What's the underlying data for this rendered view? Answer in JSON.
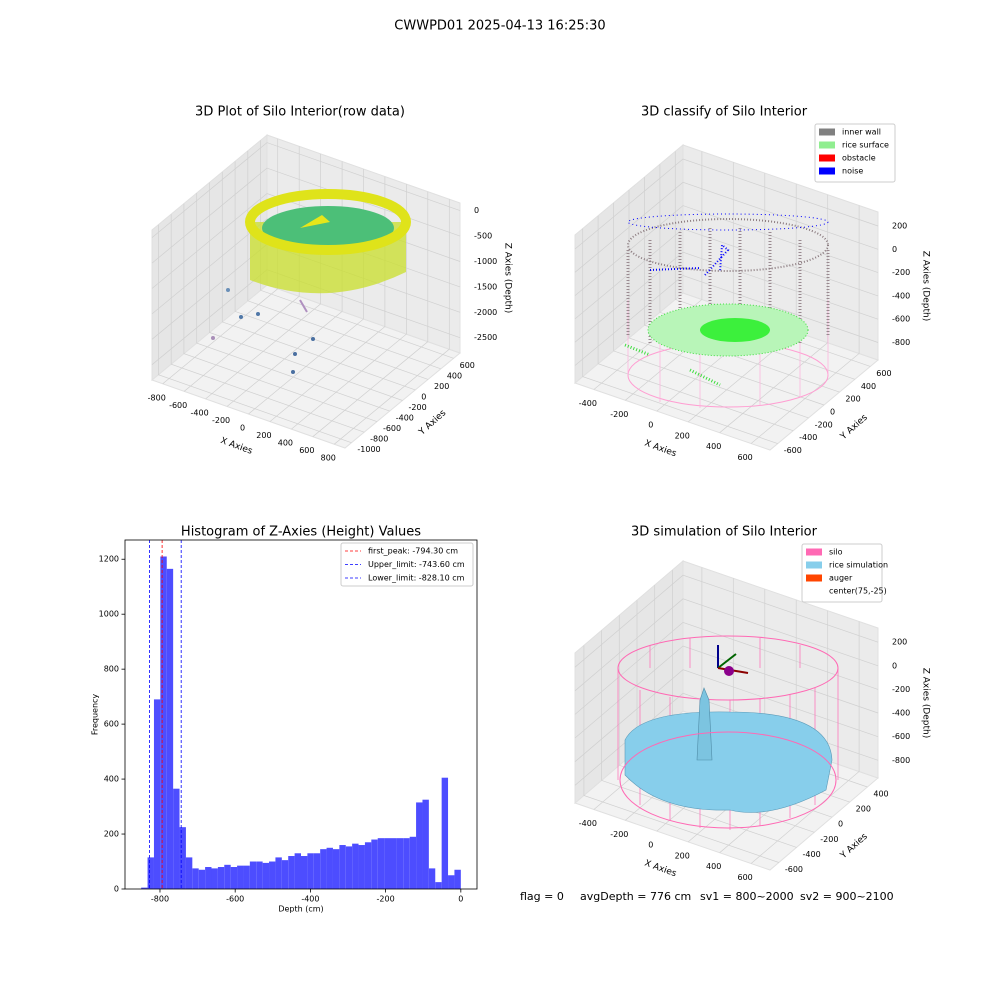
{
  "title": "CWWPD01 2025-04-13 16:25:30",
  "chart_data": [
    {
      "type": "scatter3d",
      "title": "3D Plot of Silo Interior(row data)",
      "xlabel": "X Axies",
      "ylabel": "Y Axies",
      "zlabel": "Z Axies (Depth)",
      "xlim": [
        -900,
        900
      ],
      "ylim": [
        -1100,
        700
      ],
      "zlim": [
        -2800,
        150
      ],
      "xticks": [
        -800,
        -600,
        -400,
        -200,
        0,
        200,
        400,
        600,
        800
      ],
      "yticks": [
        -1000,
        -800,
        -600,
        -400,
        -200,
        0,
        200,
        400,
        600
      ],
      "zticks": [
        -2500,
        -2000,
        -1500,
        -1000,
        -500,
        0
      ]
    },
    {
      "type": "scatter3d",
      "title": "3D classify of Silo Interior",
      "xlabel": "X Axies",
      "ylabel": "Y Axies",
      "zlabel": "Z Axies (Depth)",
      "xlim": [
        -520,
        720
      ],
      "ylim": [
        -700,
        700
      ],
      "zlim": [
        -950,
        320
      ],
      "xticks": [
        -400,
        -200,
        0,
        200,
        400,
        600
      ],
      "yticks": [
        -600,
        -400,
        -200,
        0,
        200,
        400,
        600
      ],
      "zticks": [
        -800,
        -600,
        -400,
        -200,
        0,
        200
      ],
      "series": [
        {
          "name": "inner wall",
          "color": "#808080"
        },
        {
          "name": "rice surface",
          "color": "#90ee90"
        },
        {
          "name": "obstacle",
          "color": "#ff0000"
        },
        {
          "name": "noise",
          "color": "#0000ff"
        }
      ]
    },
    {
      "type": "histogram",
      "title": "Histogram of Z-Axies (Height) Values",
      "xlabel": "Depth (cm)",
      "ylabel": "Frequency",
      "color": "#4d4dff",
      "xlim": [
        -893,
        43
      ],
      "ylim": [
        0,
        1270
      ],
      "xticks": [
        -800,
        -600,
        -400,
        -200,
        0
      ],
      "yticks": [
        0,
        200,
        400,
        600,
        800,
        1000,
        1200
      ],
      "bins": [
        -850,
        -833,
        -816,
        -799,
        -782,
        -765,
        -748,
        -731,
        -714,
        -697,
        -680,
        -663,
        -646,
        -629,
        -612,
        -595,
        -578,
        -561,
        -544,
        -527,
        -510,
        -493,
        -476,
        -459,
        -442,
        -425,
        -408,
        -391,
        -374,
        -357,
        -340,
        -323,
        -306,
        -289,
        -272,
        -255,
        -238,
        -221,
        -204,
        -187,
        -170,
        -153,
        -136,
        -119,
        -102,
        -85,
        -68,
        -51,
        -34,
        -17,
        0
      ],
      "counts": [
        5,
        115,
        690,
        1210,
        1165,
        365,
        225,
        115,
        75,
        70,
        80,
        75,
        80,
        88,
        80,
        85,
        85,
        100,
        100,
        95,
        100,
        115,
        105,
        120,
        130,
        120,
        130,
        130,
        145,
        150,
        145,
        160,
        155,
        165,
        160,
        170,
        180,
        185,
        185,
        185,
        185,
        185,
        190,
        315,
        325,
        75,
        25,
        405,
        50,
        70
      ],
      "lines": [
        {
          "name": "first_peak: -794.30 cm",
          "value": -794.3,
          "color": "#ff0000"
        },
        {
          "name": "Upper_limit: -743.60 cm",
          "value": -743.6,
          "color": "#0000ff"
        },
        {
          "name": "Lower_limit: -828.10 cm",
          "value": -828.1,
          "color": "#0000ff"
        }
      ]
    },
    {
      "type": "surface3d",
      "title": "3D simulation of Silo Interior",
      "xlabel": "X Axies",
      "ylabel": "Y Axies",
      "zlabel": "Z Axies (Depth)",
      "xlim": [
        -520,
        720
      ],
      "ylim": [
        -700,
        520
      ],
      "zlim": [
        -950,
        320
      ],
      "xticks": [
        -400,
        -200,
        0,
        200,
        400,
        600
      ],
      "yticks": [
        -600,
        -400,
        -200,
        0,
        200,
        400
      ],
      "zticks": [
        -800,
        -600,
        -400,
        -200,
        0,
        200
      ],
      "series": [
        {
          "name": "silo",
          "color": "#ff69b4"
        },
        {
          "name": "rice simulation",
          "color": "#87ceeb"
        },
        {
          "name": "auger",
          "color": "#ff4500"
        },
        {
          "name": "center(75,-25)",
          "color": "#ffffff"
        }
      ]
    }
  ],
  "footer": [
    "flag = 0",
    "avgDepth = 776 cm",
    "sv1 = 800~2000",
    "sv2 = 900~2100"
  ]
}
